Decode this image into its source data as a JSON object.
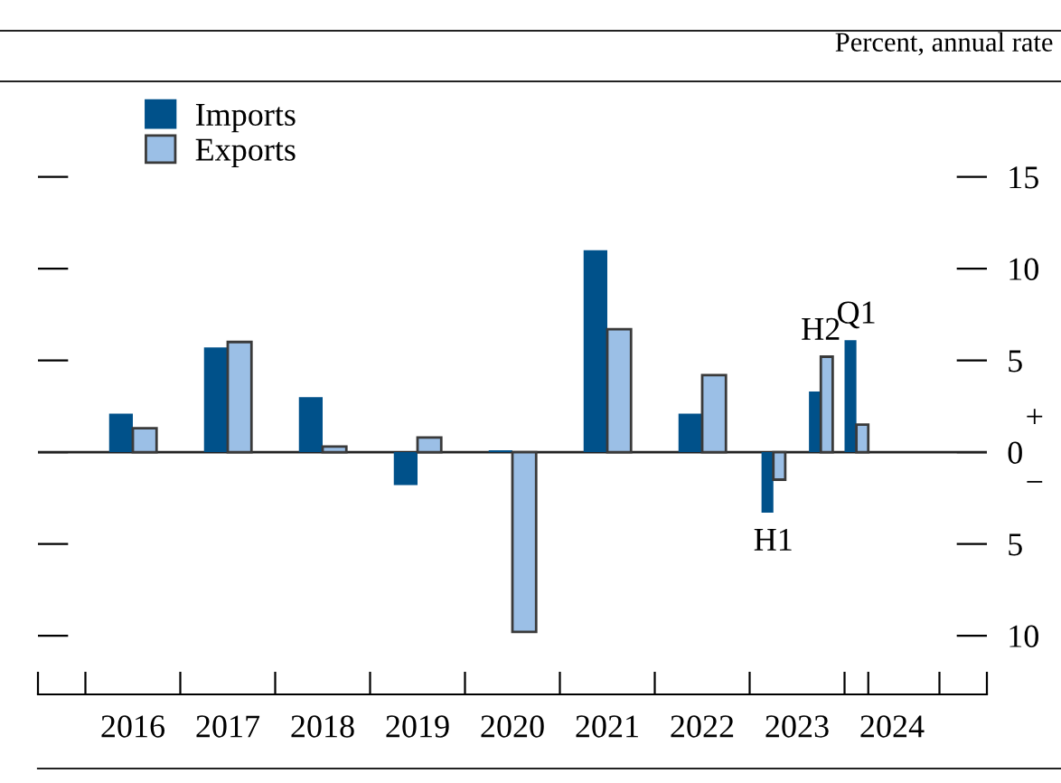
{
  "chart_data": {
    "type": "bar",
    "ylabel": "Percent, annual rate",
    "xlim": [
      2015.5,
      2025.5
    ],
    "xticks": [
      {
        "value": 2015.5,
        "label": null
      },
      {
        "value": 2016,
        "label": null
      },
      {
        "value": 2016.5,
        "label": "2016"
      },
      {
        "value": 2017,
        "label": null
      },
      {
        "value": 2017.5,
        "label": "2017"
      },
      {
        "value": 2018,
        "label": null
      },
      {
        "value": 2018.5,
        "label": "2018"
      },
      {
        "value": 2019,
        "label": null
      },
      {
        "value": 2019.5,
        "label": "2019"
      },
      {
        "value": 2020,
        "label": null
      },
      {
        "value": 2020.5,
        "label": "2020"
      },
      {
        "value": 2021,
        "label": null
      },
      {
        "value": 2021.5,
        "label": "2021"
      },
      {
        "value": 2022,
        "label": null
      },
      {
        "value": 2022.5,
        "label": "2022"
      },
      {
        "value": 2023,
        "label": null
      },
      {
        "value": 2023.5,
        "label": "2023"
      },
      {
        "value": 2024,
        "label": null
      },
      {
        "value": 2024.25,
        "label": null
      },
      {
        "value": 2024.5,
        "label": "2024"
      },
      {
        "value": 2025,
        "label": null
      },
      {
        "value": 2025.5,
        "label": null
      }
    ],
    "ylim": [
      -13.2,
      20.2
    ],
    "yticks": [
      {
        "value": -10,
        "label": "10"
      },
      {
        "value": -5,
        "label": "5"
      },
      0,
      5,
      10,
      15
    ],
    "series": [
      {
        "name": "Imports",
        "color": "#00518a",
        "x": [
          2016.375,
          2017.375,
          2018.375,
          2019.375,
          2020.375,
          2021.375,
          2022.375,
          2023.1875,
          2023.6875,
          2024.0625
        ],
        "values": [
          2.1,
          5.7,
          3.0,
          -1.8,
          0.1,
          11.0,
          2.1,
          -3.3,
          3.3,
          6.1
        ]
      },
      {
        "name": "Exports",
        "color": "#9bbfe6",
        "x": [
          2016.625,
          2017.625,
          2018.625,
          2019.625,
          2020.625,
          2021.625,
          2022.625,
          2023.3125,
          2023.8125,
          2024.1875
        ],
        "values": [
          1.3,
          6.0,
          0.3,
          0.8,
          -9.8,
          6.7,
          4.2,
          -1.5,
          5.2,
          1.5
        ]
      }
    ],
    "ref_lines": [
      {
        "axis": "y",
        "value": 0
      }
    ],
    "annotations": [
      {
        "text": "H1",
        "x": 2023.25,
        "y": -3.3
      },
      {
        "text": "H2",
        "x": 2023.75,
        "y": 5.2
      },
      {
        "text": "Q1",
        "x": 2024.125,
        "y": 6.1
      },
      "+",
      "−"
    ],
    "legend": "top left",
    "grid": false
  }
}
